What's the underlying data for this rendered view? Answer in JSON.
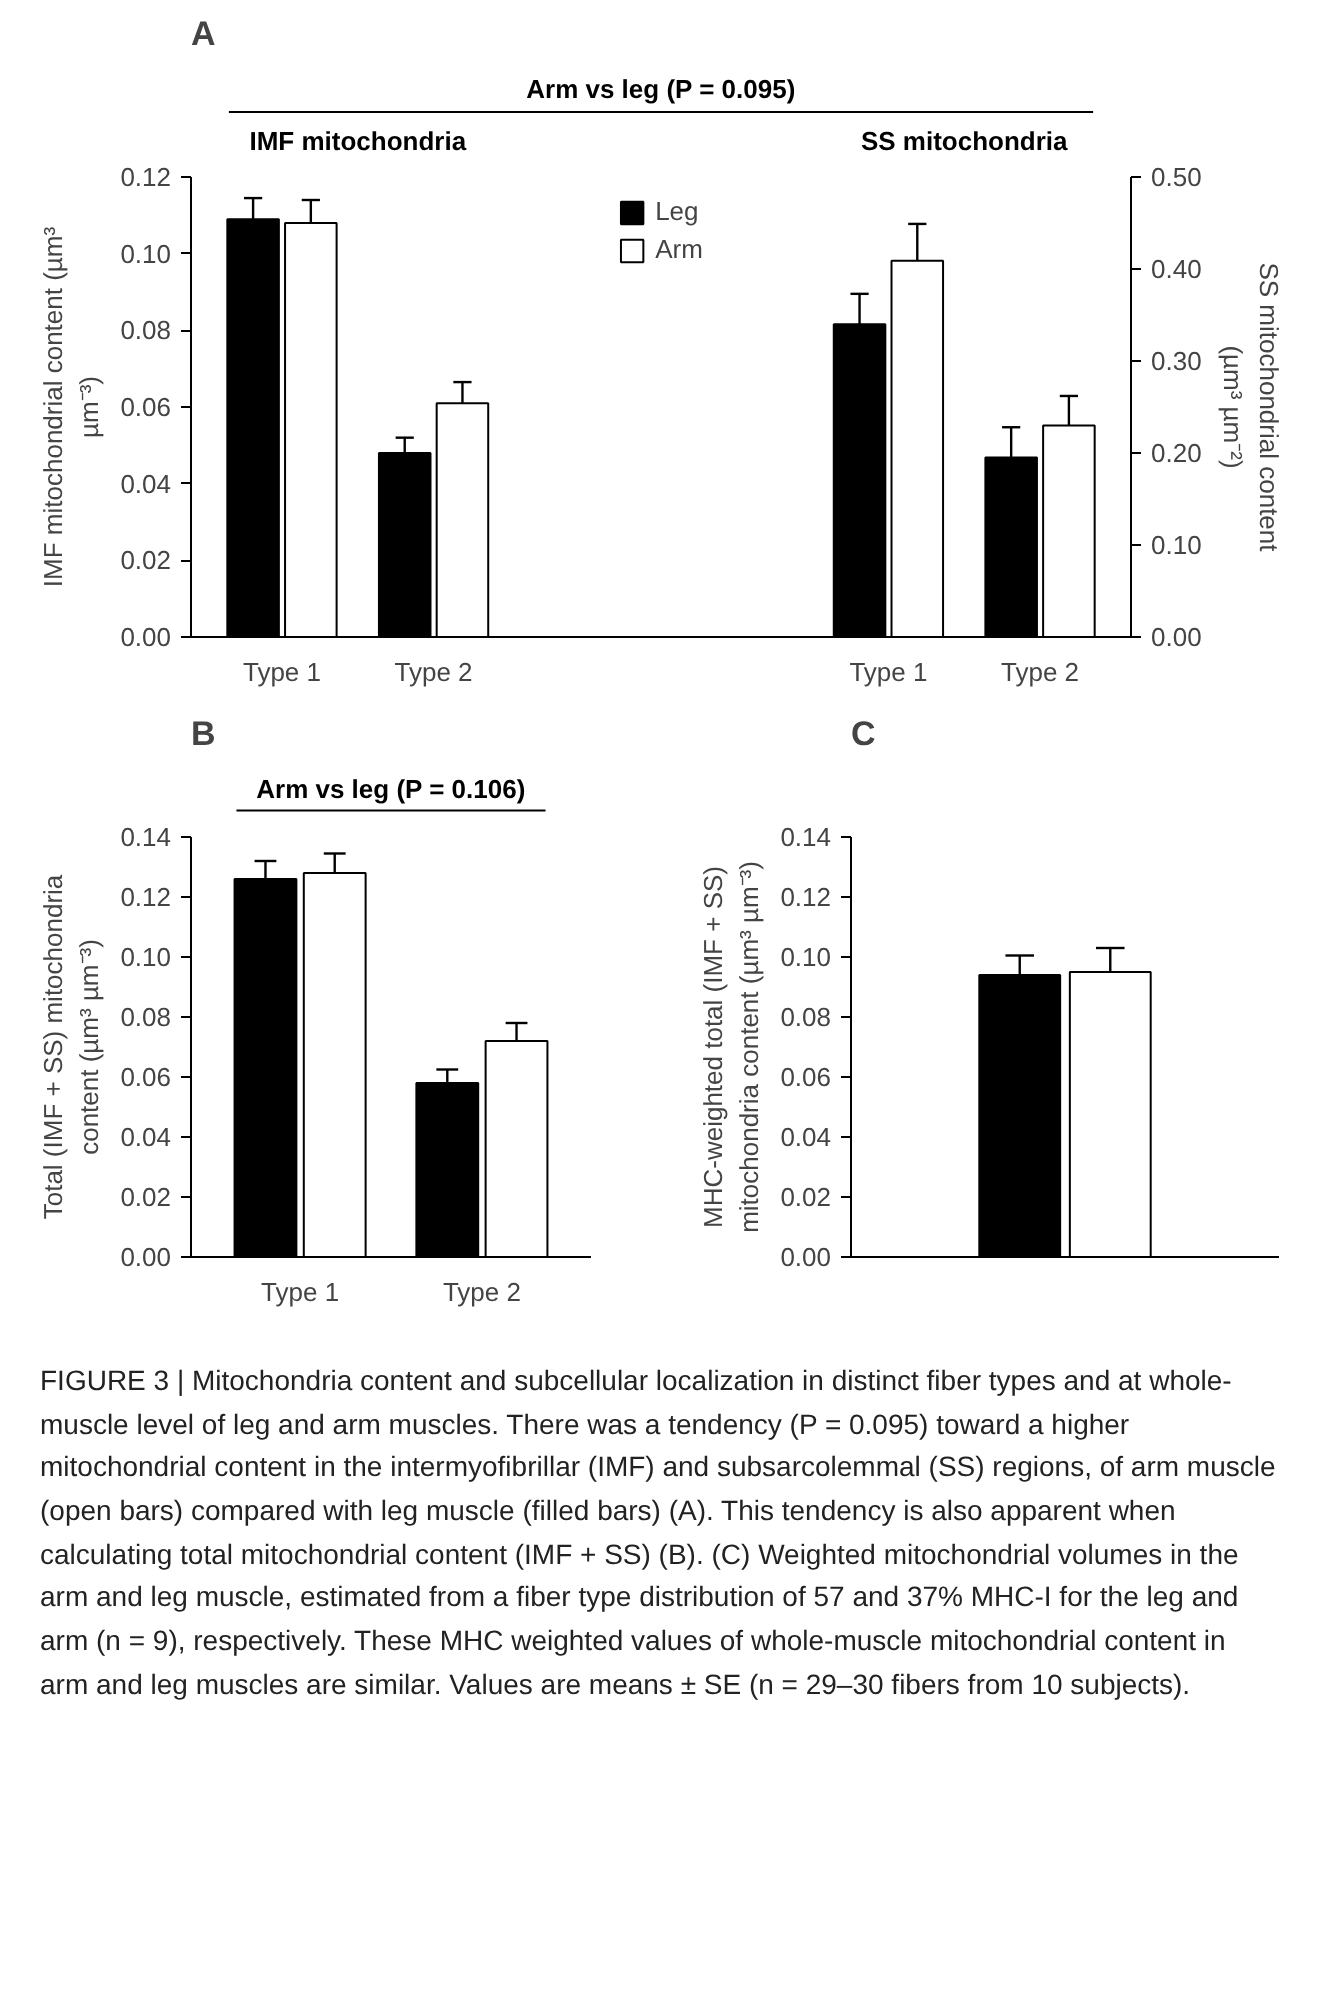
{
  "chart_data": [
    {
      "type": "bar",
      "title": "A",
      "ylabel": "IMF mitochondrial content (µm³ µm⁻³)",
      "y2label": "SS mitochondrial content (µm³ µm⁻²)",
      "categories": [
        "Type 1",
        "Type 2",
        null,
        null,
        "Type 1",
        "Type 2"
      ],
      "series": [
        {
          "name": "Leg",
          "color": "#000000",
          "values": [
            0.109,
            0.048,
            null,
            null,
            null,
            null
          ],
          "errors": [
            0.0055,
            0.004,
            null,
            null,
            null,
            null
          ]
        },
        {
          "name": "Arm",
          "color": "#ffffff",
          "values": [
            0.108,
            0.061,
            null,
            null,
            null,
            null
          ],
          "errors": [
            0.006,
            0.0055,
            null,
            null,
            null,
            null
          ]
        },
        {
          "color": "#000000",
          "axis": "y2",
          "values": [
            null,
            null,
            null,
            null,
            0.34,
            0.195
          ],
          "errors": [
            null,
            null,
            null,
            null,
            0.033,
            0.033
          ]
        },
        {
          "color": "#ffffff",
          "axis": "y2",
          "values": [
            null,
            null,
            null,
            null,
            0.409,
            0.23
          ],
          "errors": [
            null,
            null,
            null,
            null,
            0.04,
            0.032
          ]
        }
      ],
      "ylim": [
        0,
        0.12
      ],
      "yticks": [
        {
          "value": 0,
          "label": "0.00"
        },
        {
          "value": 0.02,
          "label": "0.02"
        },
        {
          "value": 0.04,
          "label": "0.04"
        },
        {
          "value": 0.06,
          "label": "0.06"
        },
        {
          "value": 0.08,
          "label": "0.08"
        },
        {
          "value": 0.1,
          "label": "0.10"
        },
        {
          "value": 0.12,
          "label": "0.12"
        }
      ],
      "y2lim": [
        0,
        0.5
      ],
      "y2ticks": [
        {
          "value": 0,
          "label": "0.00"
        },
        {
          "value": 0.1,
          "label": "0.10"
        },
        {
          "value": 0.2,
          "label": "0.20"
        },
        {
          "value": 0.3,
          "label": "0.30"
        },
        {
          "value": 0.4,
          "label": "0.40"
        },
        {
          "value": 0.5,
          "label": "0.50"
        }
      ],
      "legend": "top",
      "grid": false,
      "annotations": [
        "Arm vs leg (P = 0.095)",
        "IMF mitochondria",
        "SS mitochondria"
      ]
    },
    {
      "type": "bar",
      "title": "B",
      "ylabel": "Total (IMF + SS) mitochondria content (µm³ µm⁻³)",
      "categories": [
        "Type 1",
        "Type 2"
      ],
      "series": [
        {
          "color": "#000000",
          "values": [
            0.126,
            0.058
          ],
          "errors": [
            0.006,
            0.0045
          ]
        },
        {
          "color": "#ffffff",
          "values": [
            0.128,
            0.072
          ],
          "errors": [
            0.0065,
            0.006
          ]
        }
      ],
      "ylim": [
        0,
        0.14
      ],
      "yticks": [
        {
          "value": 0,
          "label": "0.00"
        },
        {
          "value": 0.02,
          "label": "0.02"
        },
        {
          "value": 0.04,
          "label": "0.04"
        },
        {
          "value": 0.06,
          "label": "0.06"
        },
        {
          "value": 0.08,
          "label": "0.08"
        },
        {
          "value": 0.1,
          "label": "0.10"
        },
        {
          "value": 0.12,
          "label": "0.12"
        },
        {
          "value": 0.14,
          "label": "0.14"
        }
      ],
      "grid": false,
      "annotations": [
        "Arm vs leg (P = 0.106)"
      ]
    },
    {
      "type": "bar",
      "title": "C",
      "ylabel": "MHC-weighted total (IMF + SS) mitochondria content (µm³ µm⁻³)",
      "categories": [
        null
      ],
      "series": [
        {
          "color": "#000000",
          "values": [
            0.094
          ],
          "errors": [
            0.0065
          ]
        },
        {
          "color": "#ffffff",
          "values": [
            0.095
          ],
          "errors": [
            0.008
          ]
        }
      ],
      "ylim": [
        0,
        0.14
      ],
      "yticks": [
        {
          "value": 0,
          "label": "0.00"
        },
        {
          "value": 0.02,
          "label": "0.02"
        },
        {
          "value": 0.04,
          "label": "0.04"
        },
        {
          "value": 0.06,
          "label": "0.06"
        },
        {
          "value": 0.08,
          "label": "0.08"
        },
        {
          "value": 0.1,
          "label": "0.10"
        },
        {
          "value": 0.12,
          "label": "0.12"
        },
        {
          "value": 0.14,
          "label": "0.14"
        }
      ],
      "grid": false,
      "tick_labels": "y",
      "annotations": [
        "FIGURE 3 | Mitochondria content and subcellular localization in distinct fiber types and at whole-muscle level of leg and arm muscles. There was a tendency (P = 0.095) toward a higher mitochondrial content in the intermyofibrillar (IMF) and subsarcolemmal (SS) regions, of arm muscle (open bars) compared with leg muscle (filled bars) (A). This tendency is also apparent when calculating total mitochondrial content (IMF + SS) (B). (C) Weighted mitochondrial volumes in the arm and leg muscle, estimated from a fiber type distribution of 57 and 37% MHC-I for the leg and arm (n = 9), respectively. These MHC weighted values of whole-muscle mitochondrial content in arm and leg muscles are similar. Values are means ± SE (n = 29–30 fibers from 10 subjects)."
      ]
    }
  ]
}
